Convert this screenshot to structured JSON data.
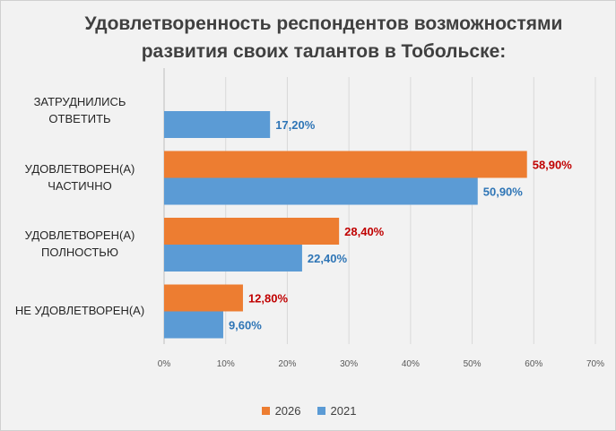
{
  "chart_data": {
    "type": "bar",
    "orientation": "horizontal",
    "title": [
      "Удовлетворенность респондентов возможностями",
      "развития своих талантов в Тобольске:"
    ],
    "categories": [
      [
        "ЗАТРУДНИЛИСЬ",
        "ОТВЕТИТЬ"
      ],
      [
        "УДОВЛЕТВОРЕН(А)",
        "ЧАСТИЧНО"
      ],
      [
        "УДОВЛЕТВОРЕН(А)",
        "ПОЛНОСТЬЮ"
      ],
      [
        "НЕ УДОВЛЕТВОРЕН(А)"
      ]
    ],
    "series": [
      {
        "name": "2026",
        "color": "#ed7d31",
        "label_color": "#c00000",
        "values": [
          null,
          58.9,
          28.4,
          12.8
        ],
        "labels": [
          "",
          "58,90%",
          "28,40%",
          "12,80%"
        ]
      },
      {
        "name": "2021",
        "color": "#5b9bd5",
        "label_color": "#2e75b6",
        "values": [
          17.2,
          50.9,
          22.4,
          9.6
        ],
        "labels": [
          "17,20%",
          "50,90%",
          "22,40%",
          "9,60%"
        ]
      }
    ],
    "xlim": [
      0,
      70
    ],
    "x_ticks": [
      0,
      10,
      20,
      30,
      40,
      50,
      60,
      70
    ],
    "x_tick_labels": [
      "0%",
      "10%",
      "20%",
      "30%",
      "40%",
      "50%",
      "60%",
      "70%"
    ],
    "grid": true,
    "legend_position": "bottom",
    "legend_order": [
      "2026",
      "2021"
    ]
  }
}
